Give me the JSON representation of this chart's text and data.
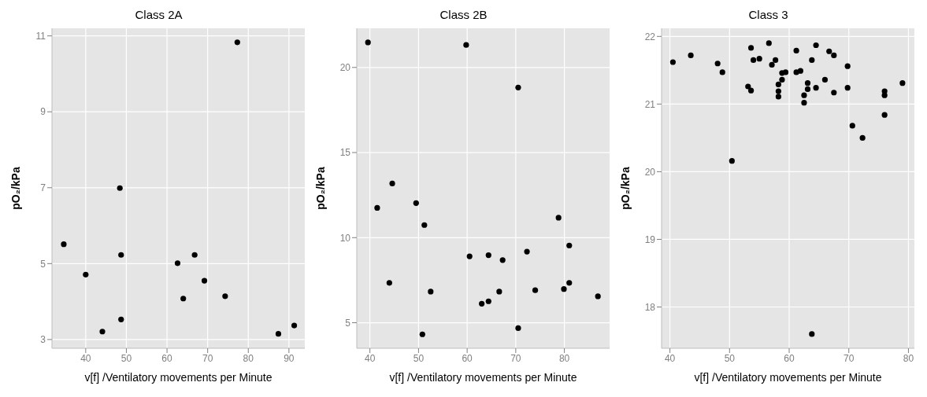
{
  "chart_data": [
    {
      "type": "scatter",
      "title": "Class 2A",
      "xlabel": "v[f] /Ventilatory movements per Minute",
      "ylabel": "pO₂/kPa",
      "color": "#000000",
      "marker": "circle",
      "grid": true,
      "xlim": [
        31.7,
        93.9
      ],
      "ylim": [
        2.77,
        11.2
      ],
      "xticks": [
        40,
        50,
        60,
        70,
        80,
        90
      ],
      "yticks": [
        3,
        5,
        7,
        9,
        11
      ],
      "x": [
        34.6,
        40.0,
        44.1,
        48.4,
        48.7,
        48.7,
        62.6,
        64.0,
        66.8,
        69.2,
        74.3,
        77.3,
        87.4,
        91.3
      ],
      "values": [
        5.51,
        4.71,
        3.21,
        6.99,
        5.23,
        3.53,
        5.01,
        4.08,
        5.23,
        4.55,
        4.14,
        10.83,
        3.15,
        3.37
      ]
    },
    {
      "type": "scatter",
      "title": "Class 2B",
      "xlabel": "v[f] /Ventilatory movements per Minute",
      "ylabel": "pO₂/kPa",
      "color": "#000000",
      "marker": "circle",
      "grid": true,
      "xlim": [
        37.3,
        89.3
      ],
      "ylim": [
        3.5,
        22.3
      ],
      "xticks": [
        40,
        50,
        60,
        70,
        80
      ],
      "yticks": [
        5,
        10,
        15,
        20
      ],
      "x": [
        39.6,
        59.8,
        70.5,
        44.6,
        41.5,
        49.5,
        51.2,
        78.8,
        81.0,
        72.3,
        60.5,
        64.4,
        67.3,
        44.0,
        52.5,
        63.0,
        64.4,
        66.6,
        74.0,
        79.9,
        81.0,
        86.9,
        70.5,
        50.8
      ],
      "values": [
        21.47,
        21.32,
        18.82,
        13.18,
        11.75,
        12.03,
        10.74,
        11.17,
        9.54,
        9.18,
        8.9,
        8.97,
        8.68,
        7.34,
        6.83,
        6.12,
        6.26,
        6.83,
        6.91,
        6.98,
        7.34,
        6.55,
        4.68,
        4.32
      ]
    },
    {
      "type": "scatter",
      "title": "Class 3",
      "xlabel": "v[f] /Ventilatory movements per Minute",
      "ylabel": "pO₂/kPa",
      "color": "#000000",
      "marker": "circle",
      "grid": true,
      "xlim": [
        38.6,
        81.0
      ],
      "ylim": [
        17.39,
        22.12
      ],
      "xticks": [
        40,
        50,
        60,
        70,
        80
      ],
      "yticks": [
        18,
        19,
        20,
        21,
        22
      ],
      "x": [
        40.5,
        43.5,
        48.0,
        48.8,
        53.6,
        54.0,
        55.0,
        53.1,
        53.6,
        56.6,
        57.1,
        57.7,
        58.2,
        58.2,
        58.2,
        58.8,
        58.8,
        59.4,
        61.2,
        61.2,
        61.9,
        62.5,
        62.5,
        63.1,
        63.1,
        63.8,
        64.5,
        64.5,
        63.8,
        66.0,
        66.7,
        67.5,
        67.5,
        69.8,
        69.8,
        70.6,
        72.3,
        76.0,
        76.0,
        76.0,
        79.0,
        50.4
      ],
      "values": [
        21.62,
        21.72,
        21.6,
        21.47,
        21.83,
        21.65,
        21.67,
        21.26,
        21.2,
        21.9,
        21.58,
        21.65,
        21.29,
        21.19,
        21.11,
        21.36,
        21.46,
        21.47,
        21.79,
        21.47,
        21.49,
        21.13,
        21.02,
        21.31,
        21.22,
        21.65,
        21.87,
        21.24,
        17.6,
        21.36,
        21.78,
        21.72,
        21.17,
        21.56,
        21.24,
        20.68,
        20.5,
        21.19,
        21.13,
        20.84,
        21.31,
        20.16
      ]
    }
  ]
}
